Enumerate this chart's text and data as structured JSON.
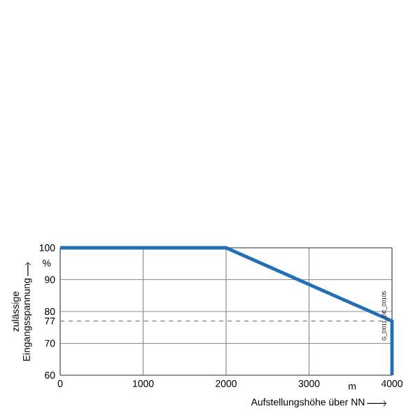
{
  "chart_data": {
    "type": "line",
    "xlabel": "Aufstellungshöhe über NN",
    "ylabel": "zulässige Eingangsspannung",
    "x": [
      0,
      2000,
      4000,
      4000
    ],
    "series": [
      {
        "color": "#1f6fbf",
        "values": [
          100,
          100,
          77,
          60
        ]
      }
    ],
    "xlim": [
      0,
      4000
    ],
    "ylim": [
      60,
      100
    ],
    "xticks": [
      0,
      1000,
      2000,
      3000,
      4000
    ],
    "yticks": [
      60,
      70,
      80,
      90,
      100
    ],
    "ref_lines": [
      {
        "axis": "y",
        "value": 77,
        "label": "77",
        "line_style": "dashed",
        "color": "#808080"
      }
    ],
    "grid": true,
    "marker": "none",
    "line_style": "solid",
    "annotations": [
      "%",
      "m",
      "G_D011_DE_00105"
    ]
  }
}
